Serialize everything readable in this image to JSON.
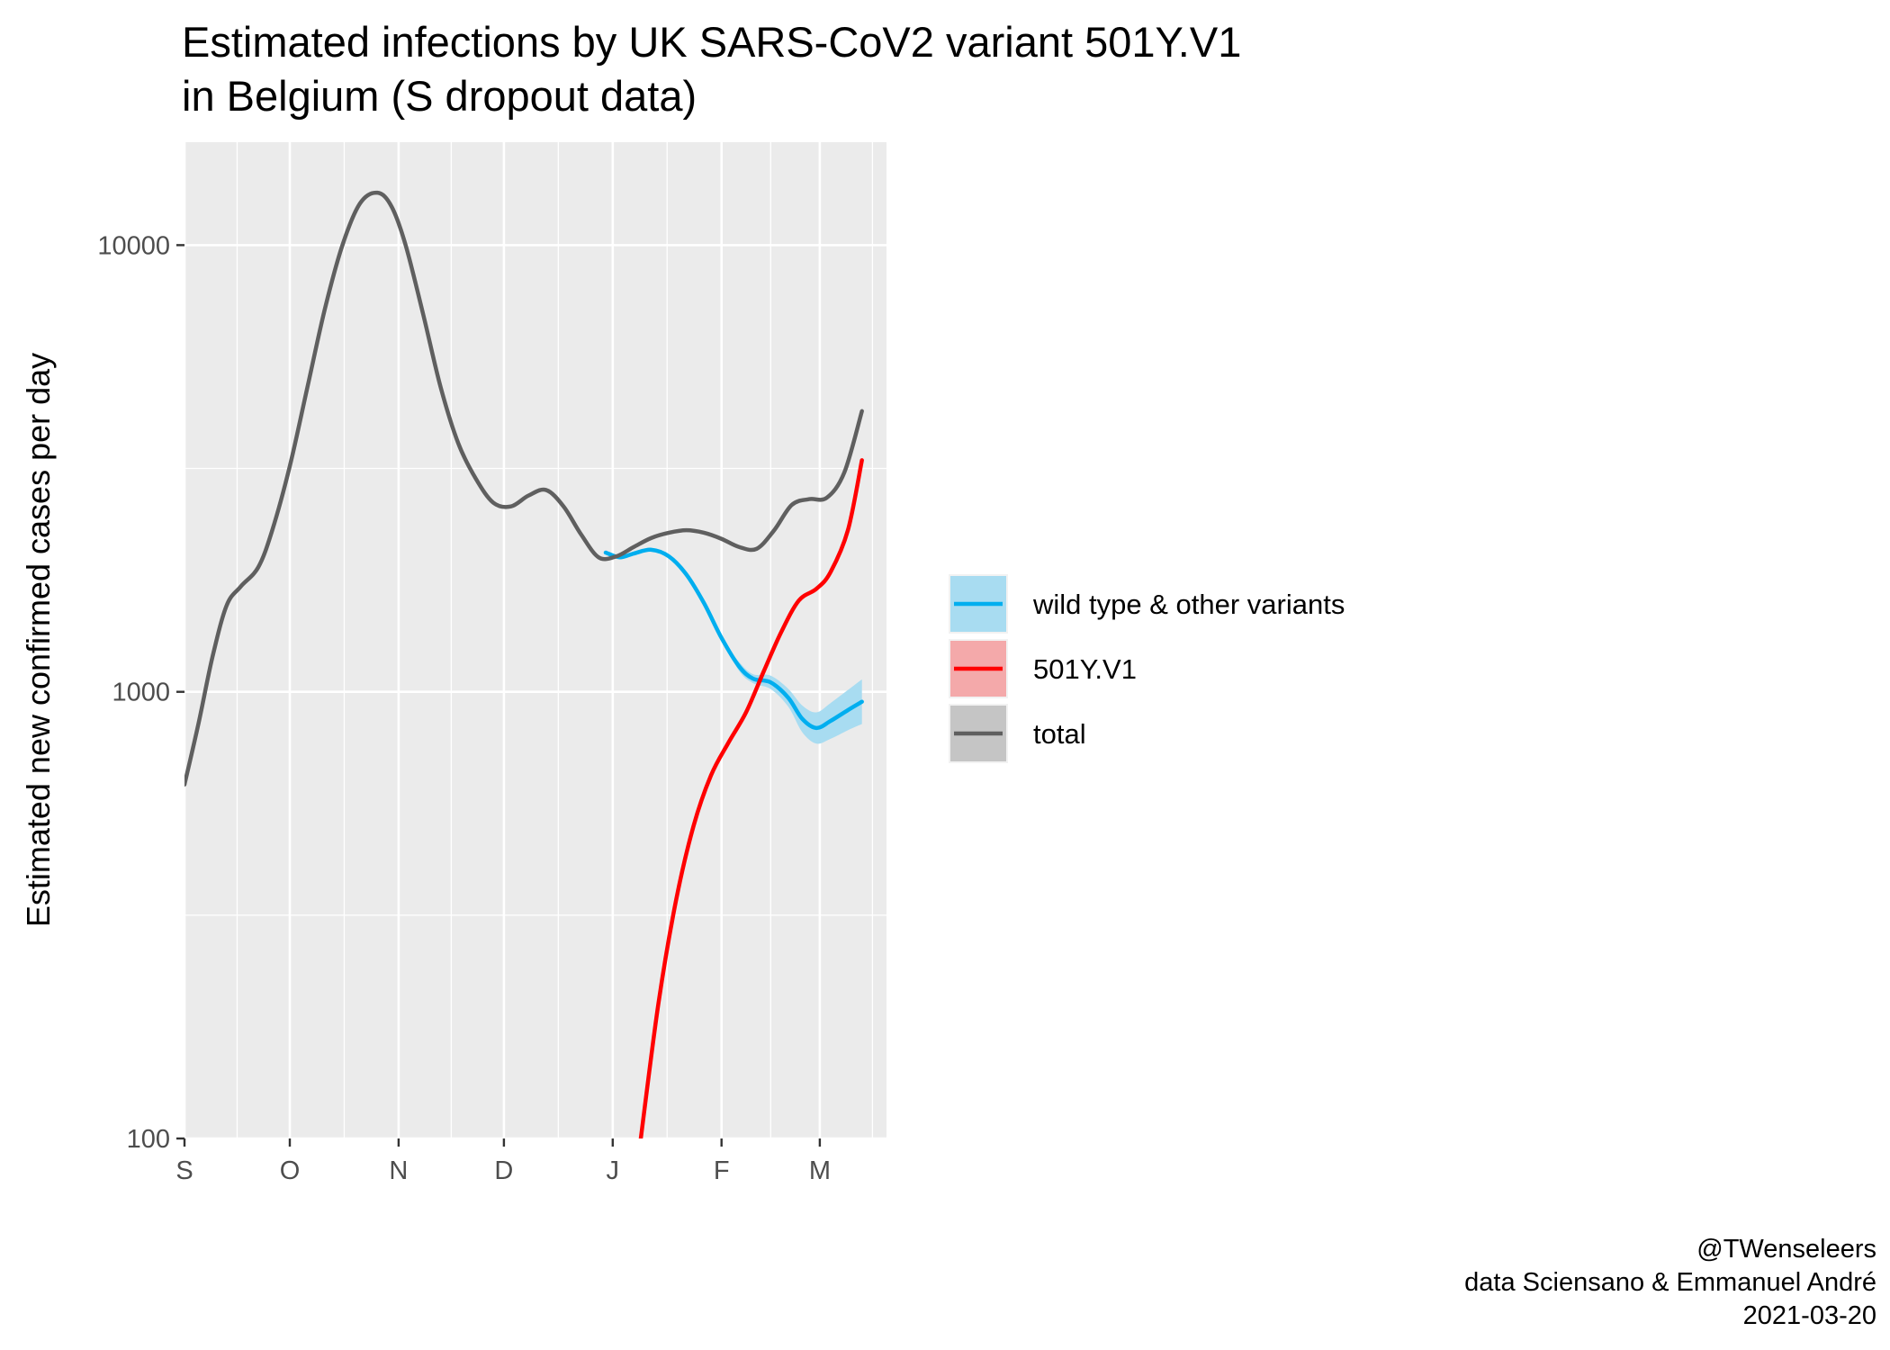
{
  "chart_data": {
    "type": "line",
    "title": "Estimated infections by UK SARS-CoV2 variant 501Y.V1",
    "subtitle": "in Belgium (S dropout data)",
    "xlabel": "",
    "ylabel": "Estimated new confirmed cases per day",
    "y_scale": "log10",
    "ylim": [
      100,
      17000
    ],
    "xlim": [
      "2020-09-01",
      "2021-03-20"
    ],
    "grid": true,
    "x_ticks": [
      {
        "date": "2020-09-01",
        "label": "S"
      },
      {
        "date": "2020-10-01",
        "label": "O"
      },
      {
        "date": "2020-11-01",
        "label": "N"
      },
      {
        "date": "2020-12-01",
        "label": "D"
      },
      {
        "date": "2021-01-01",
        "label": "J"
      },
      {
        "date": "2021-02-01",
        "label": "F"
      },
      {
        "date": "2021-03-01",
        "label": "M"
      }
    ],
    "y_ticks": [
      {
        "value": 100,
        "label": "100"
      },
      {
        "value": 1000,
        "label": "1000"
      },
      {
        "value": 10000,
        "label": "10000"
      }
    ],
    "legend_position": "right",
    "series": [
      {
        "name": "wild type & other variants",
        "color": "#00aeef",
        "ribbon_color": "#a8dcf1",
        "points": [
          [
            "2020-12-30",
            2050
          ],
          [
            "2021-01-03",
            2000
          ],
          [
            "2021-01-07",
            2040
          ],
          [
            "2021-01-12",
            2080
          ],
          [
            "2021-01-17",
            2010
          ],
          [
            "2021-01-22",
            1830
          ],
          [
            "2021-01-27",
            1580
          ],
          [
            "2021-02-01",
            1320
          ],
          [
            "2021-02-06",
            1140
          ],
          [
            "2021-02-10",
            1070
          ],
          [
            "2021-02-15",
            1050
          ],
          [
            "2021-02-20",
            970
          ],
          [
            "2021-02-24",
            870
          ],
          [
            "2021-02-28",
            830
          ],
          [
            "2021-03-04",
            860
          ],
          [
            "2021-03-09",
            910
          ],
          [
            "2021-03-13",
            950
          ]
        ],
        "ribbon_halfwidth": [
          0,
          0,
          0,
          0,
          0,
          0,
          0,
          0,
          0.01,
          0.01,
          0.015,
          0.02,
          0.03,
          0.035,
          0.04,
          0.045,
          0.05
        ]
      },
      {
        "name": "501Y.V1",
        "color": "#ff0000",
        "ribbon_color": "#f4a9aa",
        "points": [
          [
            "2021-01-09",
            100
          ],
          [
            "2021-01-14",
            200
          ],
          [
            "2021-01-19",
            340
          ],
          [
            "2021-01-24",
            500
          ],
          [
            "2021-01-29",
            650
          ],
          [
            "2021-02-03",
            770
          ],
          [
            "2021-02-08",
            900
          ],
          [
            "2021-02-13",
            1110
          ],
          [
            "2021-02-18",
            1360
          ],
          [
            "2021-02-23",
            1600
          ],
          [
            "2021-02-28",
            1700
          ],
          [
            "2021-03-04",
            1850
          ],
          [
            "2021-03-09",
            2300
          ],
          [
            "2021-03-13",
            3300
          ]
        ]
      },
      {
        "name": "total",
        "color": "#5f5f5f",
        "ribbon_color": "#c5c5c5",
        "points": [
          [
            "2020-09-01",
            620
          ],
          [
            "2020-09-05",
            850
          ],
          [
            "2020-09-09",
            1200
          ],
          [
            "2020-09-13",
            1560
          ],
          [
            "2020-09-17",
            1720
          ],
          [
            "2020-09-22",
            1900
          ],
          [
            "2020-09-26",
            2300
          ],
          [
            "2020-10-01",
            3200
          ],
          [
            "2020-10-06",
            4800
          ],
          [
            "2020-10-11",
            7200
          ],
          [
            "2020-10-16",
            10000
          ],
          [
            "2020-10-21",
            12400
          ],
          [
            "2020-10-26",
            13100
          ],
          [
            "2020-10-30",
            12200
          ],
          [
            "2020-11-03",
            10000
          ],
          [
            "2020-11-08",
            7000
          ],
          [
            "2020-11-13",
            4800
          ],
          [
            "2020-11-18",
            3600
          ],
          [
            "2020-11-23",
            3000
          ],
          [
            "2020-11-28",
            2650
          ],
          [
            "2020-12-03",
            2600
          ],
          [
            "2020-12-08",
            2750
          ],
          [
            "2020-12-13",
            2830
          ],
          [
            "2020-12-18",
            2600
          ],
          [
            "2020-12-23",
            2250
          ],
          [
            "2020-12-28",
            2000
          ],
          [
            "2021-01-02",
            2010
          ],
          [
            "2021-01-07",
            2110
          ],
          [
            "2021-01-12",
            2210
          ],
          [
            "2021-01-17",
            2270
          ],
          [
            "2021-01-22",
            2300
          ],
          [
            "2021-01-27",
            2270
          ],
          [
            "2021-02-01",
            2200
          ],
          [
            "2021-02-06",
            2110
          ],
          [
            "2021-02-11",
            2090
          ],
          [
            "2021-02-16",
            2300
          ],
          [
            "2021-02-21",
            2620
          ],
          [
            "2021-02-26",
            2700
          ],
          [
            "2021-03-03",
            2720
          ],
          [
            "2021-03-08",
            3100
          ],
          [
            "2021-03-13",
            4250
          ]
        ]
      }
    ]
  },
  "caption": {
    "line1": "@TWenseleers",
    "line2": "data Sciensano & Emmanuel André",
    "line3": "2021-03-20"
  }
}
